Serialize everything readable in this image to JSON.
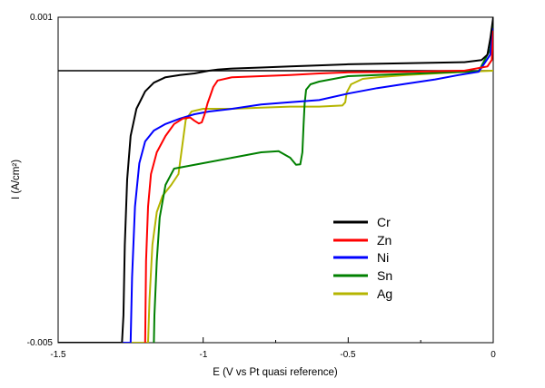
{
  "chart_data": {
    "type": "line",
    "xlabel": "E (V vs Pt quasi reference)",
    "ylabel": "I (A/cm²)",
    "xlim": [
      -1.5,
      0
    ],
    "ylim": [
      -0.005,
      0.001
    ],
    "y_tick_labels": [
      "0.001",
      "-0.005"
    ],
    "x_ticks": [
      -1.5,
      -1,
      -0.5,
      0
    ],
    "x_tick_labels": [
      "-1.5",
      "-1",
      "-0.5",
      "0"
    ],
    "x_minor_ticks": [
      -1.25,
      -0.75,
      -0.25
    ],
    "grid": false,
    "legend_position": "lower-right",
    "baseline": {
      "y": 0,
      "color": "#000000"
    },
    "series": [
      {
        "name": "Cr",
        "color": "#000000",
        "points": [
          [
            -1.5,
            -0.005
          ],
          [
            -1.28,
            -0.005
          ],
          [
            -1.275,
            -0.0045
          ],
          [
            -1.27,
            -0.0032
          ],
          [
            -1.262,
            -0.002
          ],
          [
            -1.25,
            -0.0012
          ],
          [
            -1.23,
            -0.0007
          ],
          [
            -1.2,
            -0.00038
          ],
          [
            -1.17,
            -0.00022
          ],
          [
            -1.13,
            -0.00012
          ],
          [
            -1.08,
            -8e-05
          ],
          [
            -1.03,
            -5e-05
          ],
          [
            -0.98,
            0.0
          ],
          [
            -0.95,
            2e-05
          ],
          [
            -0.9,
            4e-05
          ],
          [
            -0.8,
            6e-05
          ],
          [
            -0.7,
            8e-05
          ],
          [
            -0.6,
            0.0001
          ],
          [
            -0.5,
            0.00012
          ],
          [
            -0.3,
            0.00014
          ],
          [
            -0.1,
            0.00016
          ],
          [
            -0.04,
            0.0002
          ],
          [
            -0.02,
            0.0003
          ],
          [
            -0.01,
            0.0006
          ],
          [
            0.0,
            0.001
          ]
        ]
      },
      {
        "name": "Zn",
        "color": "#ff0000",
        "points": [
          [
            -1.2,
            -0.005
          ],
          [
            -1.197,
            -0.0035
          ],
          [
            -1.19,
            -0.0025
          ],
          [
            -1.18,
            -0.0019
          ],
          [
            -1.16,
            -0.0015
          ],
          [
            -1.13,
            -0.0012
          ],
          [
            -1.1,
            -0.00098
          ],
          [
            -1.07,
            -0.00088
          ],
          [
            -1.045,
            -0.00086
          ],
          [
            -1.03,
            -0.00092
          ],
          [
            -1.015,
            -0.00097
          ],
          [
            -1.005,
            -0.00095
          ],
          [
            -0.995,
            -0.0008
          ],
          [
            -0.985,
            -0.0006
          ],
          [
            -0.975,
            -0.00045
          ],
          [
            -0.965,
            -0.0003
          ],
          [
            -0.95,
            -0.00018
          ],
          [
            -0.9,
            -0.00012
          ],
          [
            -0.8,
            -0.0001
          ],
          [
            -0.7,
            -8e-05
          ],
          [
            -0.6,
            -5e-05
          ],
          [
            -0.5,
            -3e-05
          ],
          [
            -0.3,
            -2e-05
          ],
          [
            -0.1,
            0.0
          ],
          [
            -0.02,
            8e-05
          ],
          [
            -0.005,
            0.0002
          ],
          [
            0.0,
            0.00075
          ]
        ]
      },
      {
        "name": "Ni",
        "color": "#0000ff",
        "points": [
          [
            -1.5,
            -0.005
          ],
          [
            -1.25,
            -0.005
          ],
          [
            -1.245,
            -0.0038
          ],
          [
            -1.235,
            -0.0025
          ],
          [
            -1.22,
            -0.0017
          ],
          [
            -1.2,
            -0.0013
          ],
          [
            -1.17,
            -0.0011
          ],
          [
            -1.13,
            -0.00098
          ],
          [
            -1.08,
            -0.00088
          ],
          [
            -1.03,
            -0.0008
          ],
          [
            -0.98,
            -0.00075
          ],
          [
            -0.9,
            -0.0007
          ],
          [
            -0.8,
            -0.00062
          ],
          [
            -0.7,
            -0.00058
          ],
          [
            -0.6,
            -0.00054
          ],
          [
            -0.5,
            -0.00042
          ],
          [
            -0.4,
            -0.00032
          ],
          [
            -0.3,
            -0.00024
          ],
          [
            -0.2,
            -0.00016
          ],
          [
            -0.12,
            -8e-05
          ],
          [
            -0.05,
            -2e-05
          ],
          [
            -0.01,
            0.0003
          ],
          [
            0.0,
            0.0008
          ]
        ]
      },
      {
        "name": "Sn",
        "color": "#008000",
        "points": [
          [
            -1.17,
            -0.005
          ],
          [
            -1.168,
            -0.0045
          ],
          [
            -1.16,
            -0.0035
          ],
          [
            -1.15,
            -0.0027
          ],
          [
            -1.13,
            -0.0021
          ],
          [
            -1.1,
            -0.0018
          ],
          [
            -1.05,
            -0.00175
          ],
          [
            -1.0,
            -0.0017
          ],
          [
            -0.9,
            -0.0016
          ],
          [
            -0.8,
            -0.0015
          ],
          [
            -0.74,
            -0.00148
          ],
          [
            -0.7,
            -0.0016
          ],
          [
            -0.68,
            -0.00173
          ],
          [
            -0.665,
            -0.00172
          ],
          [
            -0.658,
            -0.0015
          ],
          [
            -0.654,
            -0.001
          ],
          [
            -0.65,
            -0.0006
          ],
          [
            -0.645,
            -0.00035
          ],
          [
            -0.63,
            -0.00025
          ],
          [
            -0.6,
            -0.0002
          ],
          [
            -0.55,
            -0.00015
          ],
          [
            -0.5,
            -0.0001
          ],
          [
            -0.4,
            -8e-05
          ],
          [
            -0.2,
            -4e-05
          ],
          [
            -0.05,
            -1e-05
          ],
          [
            -0.01,
            0.0004
          ],
          [
            0.0,
            0.00095
          ]
        ]
      },
      {
        "name": "Ag",
        "color": "#b5b500",
        "points": [
          [
            -1.5,
            -0.005
          ],
          [
            -1.19,
            -0.005
          ],
          [
            -1.185,
            -0.0042
          ],
          [
            -1.175,
            -0.0032
          ],
          [
            -1.16,
            -0.0026
          ],
          [
            -1.14,
            -0.0023
          ],
          [
            -1.11,
            -0.0021
          ],
          [
            -1.085,
            -0.0019
          ],
          [
            -1.075,
            -0.0015
          ],
          [
            -1.06,
            -0.0009
          ],
          [
            -1.04,
            -0.00075
          ],
          [
            -1.0,
            -0.0007
          ],
          [
            -0.9,
            -0.0007
          ],
          [
            -0.8,
            -0.00068
          ],
          [
            -0.7,
            -0.00066
          ],
          [
            -0.6,
            -0.00066
          ],
          [
            -0.52,
            -0.00064
          ],
          [
            -0.51,
            -0.00058
          ],
          [
            -0.505,
            -0.0004
          ],
          [
            -0.49,
            -0.00025
          ],
          [
            -0.45,
            -0.00015
          ],
          [
            -0.4,
            -0.00012
          ],
          [
            -0.3,
            -8e-05
          ],
          [
            -0.2,
            -5e-05
          ],
          [
            -0.1,
            -2e-05
          ],
          [
            0.0,
            0.0
          ]
        ]
      }
    ]
  }
}
